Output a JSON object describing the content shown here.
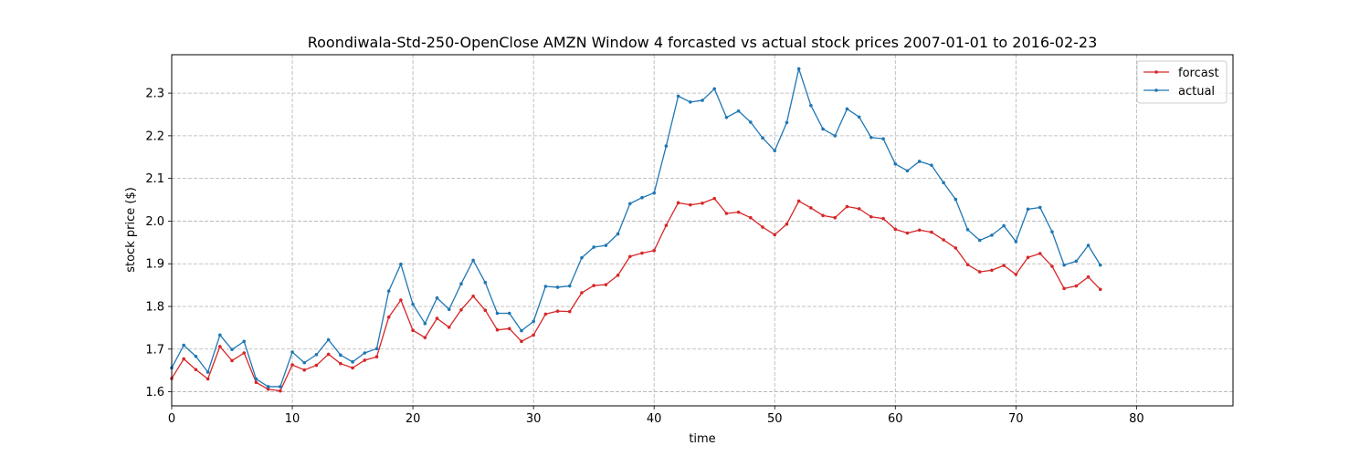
{
  "chart_data": {
    "type": "line",
    "title": "Roondiwala-Std-250-OpenClose AMZN Window 4 forcasted vs actual stock prices 2007-01-01 to 2016-02-23",
    "xlabel": "time",
    "ylabel": "stock price ($)",
    "xlim": [
      0,
      88
    ],
    "ylim": [
      1.567,
      2.39
    ],
    "xticks": [
      0,
      10,
      20,
      30,
      40,
      50,
      60,
      70,
      80
    ],
    "yticks": [
      1.6,
      1.7,
      1.8,
      1.9,
      2.0,
      2.1,
      2.2,
      2.3
    ],
    "grid": true,
    "legend_position": "upper right",
    "series": [
      {
        "name": "forcast",
        "color": "#d62728",
        "values": [
          1.631,
          1.677,
          1.652,
          1.63,
          1.706,
          1.673,
          1.691,
          1.622,
          1.606,
          1.602,
          1.663,
          1.651,
          1.662,
          1.688,
          1.666,
          1.656,
          1.674,
          1.682,
          1.775,
          1.815,
          1.744,
          1.727,
          1.772,
          1.751,
          1.792,
          1.824,
          1.791,
          1.745,
          1.748,
          1.718,
          1.733,
          1.782,
          1.789,
          1.788,
          1.832,
          1.849,
          1.851,
          1.873,
          1.917,
          1.925,
          1.931,
          1.99,
          2.043,
          2.038,
          2.042,
          2.053,
          2.018,
          2.021,
          2.008,
          1.986,
          1.968,
          1.993,
          2.047,
          2.031,
          2.013,
          2.008,
          2.034,
          2.029,
          2.01,
          2.006,
          1.981,
          1.972,
          1.979,
          1.974,
          1.956,
          1.937,
          1.898,
          1.881,
          1.885,
          1.896,
          1.875,
          1.915,
          1.924,
          1.894,
          1.842,
          1.848,
          1.869,
          1.84
        ]
      },
      {
        "name": "actual",
        "color": "#1f77b4",
        "values": [
          1.656,
          1.709,
          1.683,
          1.646,
          1.733,
          1.699,
          1.718,
          1.63,
          1.612,
          1.612,
          1.693,
          1.668,
          1.687,
          1.722,
          1.686,
          1.67,
          1.691,
          1.701,
          1.836,
          1.899,
          1.805,
          1.76,
          1.82,
          1.793,
          1.853,
          1.908,
          1.856,
          1.784,
          1.784,
          1.743,
          1.765,
          1.847,
          1.845,
          1.848,
          1.914,
          1.939,
          1.943,
          1.97,
          2.041,
          2.055,
          2.066,
          2.176,
          2.293,
          2.279,
          2.283,
          2.31,
          2.243,
          2.258,
          2.232,
          2.195,
          2.165,
          2.231,
          2.357,
          2.271,
          2.216,
          2.2,
          2.263,
          2.244,
          2.196,
          2.193,
          2.134,
          2.118,
          2.14,
          2.131,
          2.09,
          2.051,
          1.98,
          1.955,
          1.967,
          1.989,
          1.952,
          2.028,
          2.032,
          1.975,
          1.897,
          1.906,
          1.943,
          1.897
        ]
      }
    ]
  }
}
